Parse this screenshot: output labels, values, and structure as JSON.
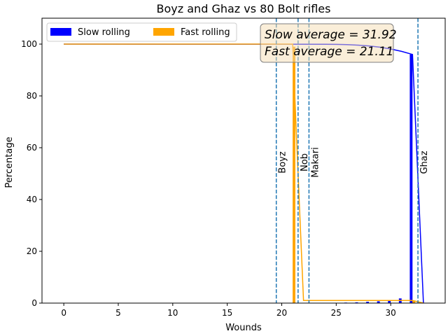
{
  "chart_data": {
    "type": "bar",
    "title": "Boyz and Ghaz vs 80 Bolt rifles",
    "xlabel": "Wounds",
    "ylabel": "Percentage",
    "xlim": [
      -2,
      35
    ],
    "ylim": [
      0,
      110
    ],
    "xticks": [
      0,
      5,
      10,
      15,
      20,
      25,
      30
    ],
    "yticks": [
      0,
      20,
      40,
      60,
      80,
      100
    ],
    "legend": {
      "placement": "top-left",
      "entries": [
        {
          "label": "Slow rolling",
          "color": "#0000ff"
        },
        {
          "label": "Fast rolling",
          "color": "#ffa500"
        }
      ]
    },
    "annotation": {
      "lines": [
        "Slow average = 31.92",
        "Fast average = 21.11"
      ],
      "placement": "top-right"
    },
    "vertical_lines": [
      {
        "x": 19.5,
        "label": "Boyz"
      },
      {
        "x": 21.5,
        "label": "Nob"
      },
      {
        "x": 22.5,
        "label": "Makari"
      },
      {
        "x": 32.5,
        "label": "Ghaz"
      }
    ],
    "series": [
      {
        "name": "Slow rolling",
        "color": "#0000ff",
        "bars": [
          {
            "x": 25,
            "value": 0.1
          },
          {
            "x": 26,
            "value": 0.2
          },
          {
            "x": 27,
            "value": 0.3
          },
          {
            "x": 28,
            "value": 0.5
          },
          {
            "x": 29,
            "value": 0.7
          },
          {
            "x": 30,
            "value": 1.0
          },
          {
            "x": 31,
            "value": 1.8
          },
          {
            "x": 32,
            "value": 96.0
          }
        ],
        "cumulative": [
          [
            0,
            100
          ],
          [
            24,
            99.95
          ],
          [
            25,
            99.9
          ],
          [
            26,
            99.8
          ],
          [
            27,
            99.6
          ],
          [
            28,
            99.3
          ],
          [
            29,
            98.8
          ],
          [
            30,
            98.1
          ],
          [
            31,
            97.2
          ],
          [
            32,
            96.0
          ],
          [
            32.5,
            48
          ],
          [
            33,
            0
          ]
        ]
      },
      {
        "name": "Fast rolling",
        "color": "#ffa500",
        "bars": [
          {
            "x": 21,
            "value": 99.0
          },
          {
            "x": 32,
            "value": 1.0
          }
        ],
        "cumulative": [
          [
            0,
            100
          ],
          [
            21,
            100
          ],
          [
            21.5,
            50
          ],
          [
            22,
            1.0
          ],
          [
            32,
            1.0
          ],
          [
            33,
            0
          ]
        ]
      }
    ]
  }
}
